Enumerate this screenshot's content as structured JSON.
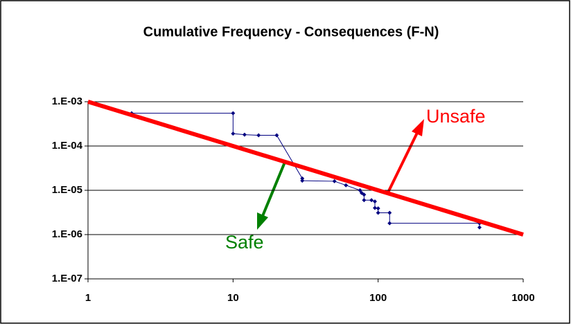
{
  "chart_data": {
    "type": "line",
    "title": "Cumulative Frequency - Consequences (F-N)",
    "xlog": true,
    "ylog": true,
    "grid": true,
    "xlim": [
      1,
      1000
    ],
    "xticks": [
      1,
      10,
      100,
      1000
    ],
    "ylim": [
      1e-07,
      0.001
    ],
    "yticks": [
      {
        "value": 1e-07,
        "label": "1.E-07"
      },
      {
        "value": 1e-06,
        "label": "1.E-06"
      },
      {
        "value": 1e-05,
        "label": "1.E-05"
      },
      {
        "value": 0.0001,
        "label": "1.E-04"
      },
      {
        "value": 0.001,
        "label": "1.E-03"
      }
    ],
    "series": [
      {
        "color": "#000080",
        "marker": true,
        "x": [
          2,
          10,
          10,
          12,
          15,
          20,
          30,
          30,
          50,
          60,
          75,
          77,
          80,
          80,
          90,
          95,
          95,
          100,
          100,
          120,
          120,
          500,
          500
        ],
        "values": [
          0.00055,
          0.00055,
          0.00019,
          0.00018,
          0.000175,
          0.000175,
          1.85e-05,
          1.65e-05,
          1.6e-05,
          1.3e-05,
          1e-05,
          8.7e-06,
          8e-06,
          6e-06,
          6e-06,
          5.6e-06,
          4e-06,
          3.9e-06,
          3.1e-06,
          3.1e-06,
          1.8e-06,
          1.8e-06,
          1.45e-06
        ]
      },
      {
        "color": "#ff0000",
        "marker": false,
        "x": [
          1,
          1000
        ],
        "values": [
          0.001,
          1e-06
        ]
      }
    ],
    "annotations": [
      {
        "text": "Unsafe",
        "color": "#ff0000"
      },
      {
        "text": "Safe",
        "color": "#008000"
      }
    ]
  }
}
